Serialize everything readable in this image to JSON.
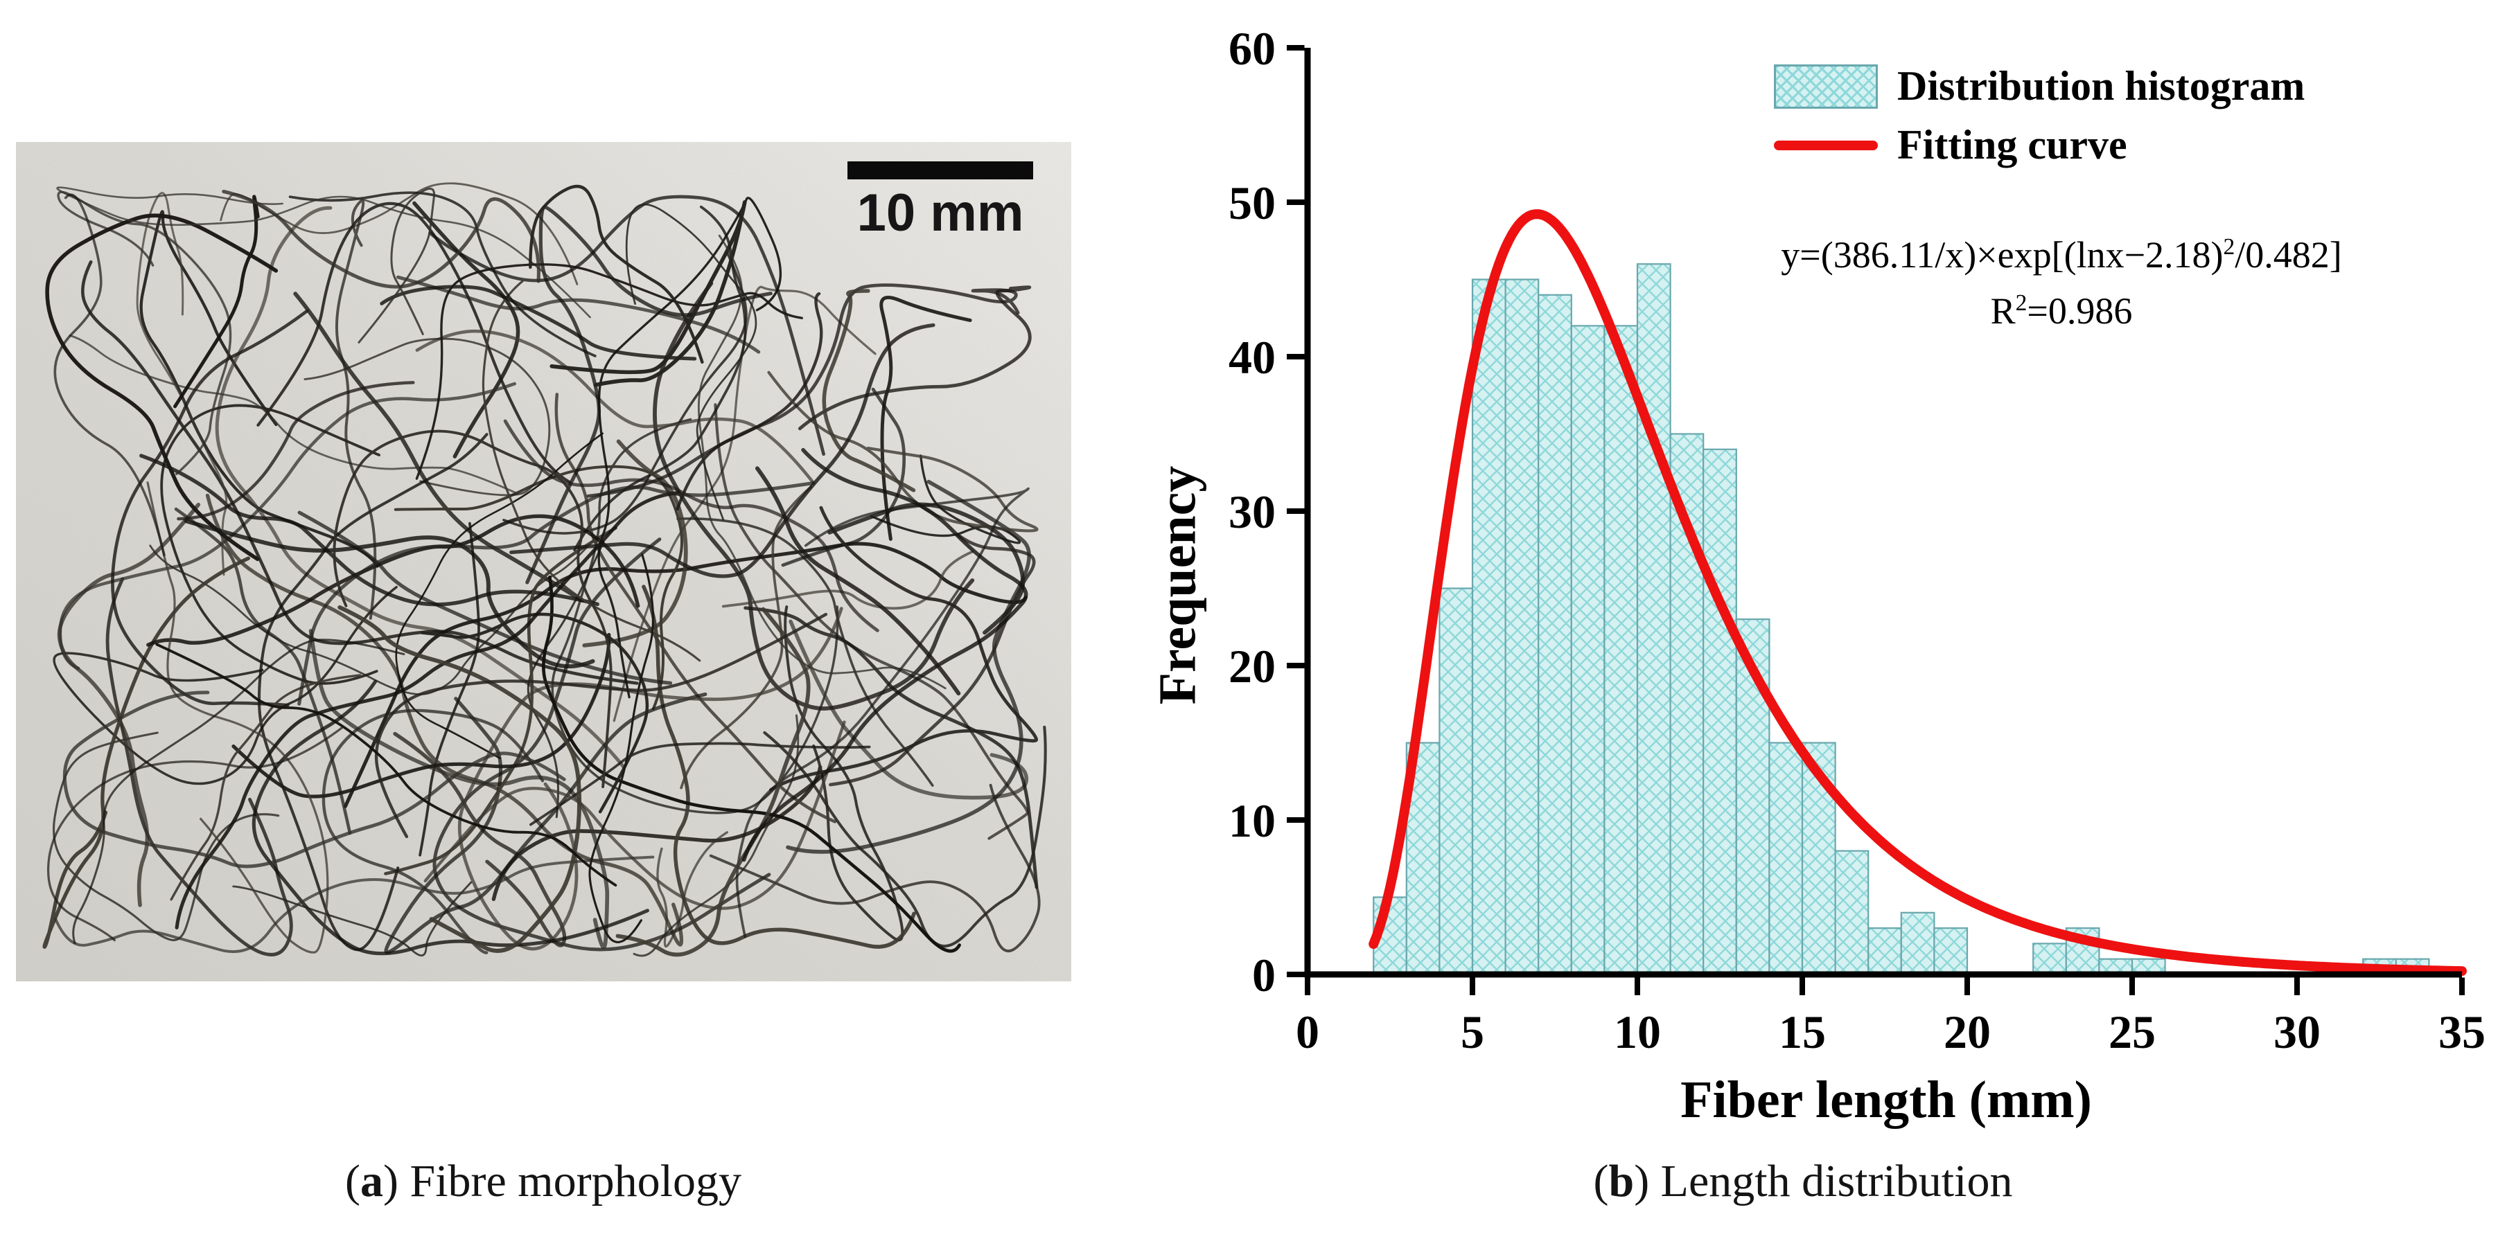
{
  "figure": {
    "panel_a": {
      "scale_bar_label": "10 mm"
    },
    "panel_b": {}
  },
  "captions": {
    "a": {
      "pre": "(",
      "bold": "a",
      "rest": ") Fibre morphology"
    },
    "b": {
      "pre": "(",
      "bold": "b",
      "rest": ") Length distribution"
    }
  },
  "chart_data": {
    "type": "bar",
    "title": "",
    "xlabel": "Fiber length (mm)",
    "ylabel": "Frequency",
    "xlim": [
      0,
      35
    ],
    "ylim": [
      0,
      60
    ],
    "x_ticks": [
      0,
      5,
      10,
      15,
      20,
      25,
      30,
      35
    ],
    "y_ticks": [
      0,
      10,
      20,
      30,
      40,
      50,
      60
    ],
    "grid": false,
    "legend_position": "top-right-inside",
    "bin_width": 1,
    "bin_starts": [
      2,
      3,
      4,
      5,
      6,
      7,
      8,
      9,
      10,
      11,
      12,
      13,
      14,
      15,
      16,
      17,
      18,
      19,
      20,
      21,
      22,
      23,
      24,
      25,
      26,
      27,
      28,
      29,
      30,
      31,
      32,
      33
    ],
    "frequencies": [
      5,
      15,
      25,
      45,
      45,
      44,
      42,
      42,
      46,
      35,
      34,
      23,
      15,
      15,
      8,
      3,
      4,
      3,
      0,
      0,
      2,
      3,
      1,
      1,
      0,
      0,
      0,
      0,
      0,
      0,
      1,
      1
    ],
    "colors": {
      "bar_fill": "#d6f1f1",
      "bar_hatch": "#8ed8da",
      "bar_stroke": "#69a7ad",
      "curve": "#ee1111",
      "axis": "#000000"
    },
    "legend": [
      {
        "label": "Distribution histogram",
        "swatch": "hatched-box"
      },
      {
        "label": "Fitting curve",
        "swatch": "red-line"
      }
    ],
    "fit_curve": {
      "model": "y=(A/x)*exp(-((lnx-mu)^2)/c)",
      "A": 386.11,
      "mu": 2.18,
      "c": 0.482,
      "x_start": 2,
      "x_end": 35,
      "r_squared": 0.986
    },
    "annotations": {
      "equation_main": "y=(386.11/x)×exp[(lnx−2.18)",
      "equation_sup": "2",
      "equation_tail": "/0.482]",
      "r2_base": "R",
      "r2_sup": "2",
      "r2_tail": "=0.986"
    }
  }
}
